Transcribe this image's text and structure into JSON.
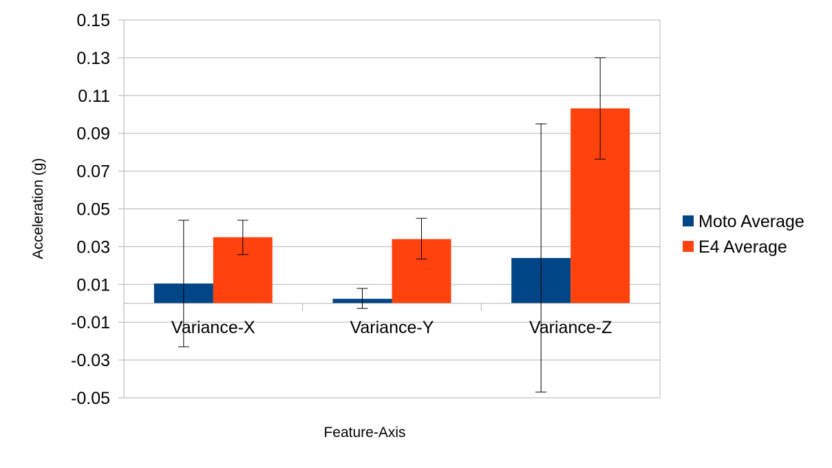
{
  "chart_data": {
    "type": "bar",
    "categories": [
      "Variance-X",
      "Variance-Y",
      "Variance-Z"
    ],
    "series": [
      {
        "name": "Moto Average",
        "color": "#004586",
        "values": [
          0.0105,
          0.0024,
          0.024
        ],
        "error_low": [
          -0.023,
          -0.0027,
          -0.047
        ],
        "error_high": [
          0.044,
          0.0079,
          0.095
        ]
      },
      {
        "name": "E4 Average",
        "color": "#ff420e",
        "values": [
          0.035,
          0.034,
          0.1032
        ],
        "error_low": [
          0.0258,
          0.0235,
          0.0763
        ],
        "error_high": [
          0.044,
          0.045,
          0.13
        ]
      }
    ],
    "xlabel": "Feature-Axis",
    "ylabel": "Acceleration (g)",
    "ylim": [
      -0.05,
      0.15
    ],
    "yticks": [
      "0.15",
      "0.13",
      "0.11",
      "0.09",
      "0.07",
      "0.05",
      "0.03",
      "0.01",
      "-0.01",
      "-0.03",
      "-0.05"
    ],
    "grid": true,
    "legend_position": "right"
  }
}
